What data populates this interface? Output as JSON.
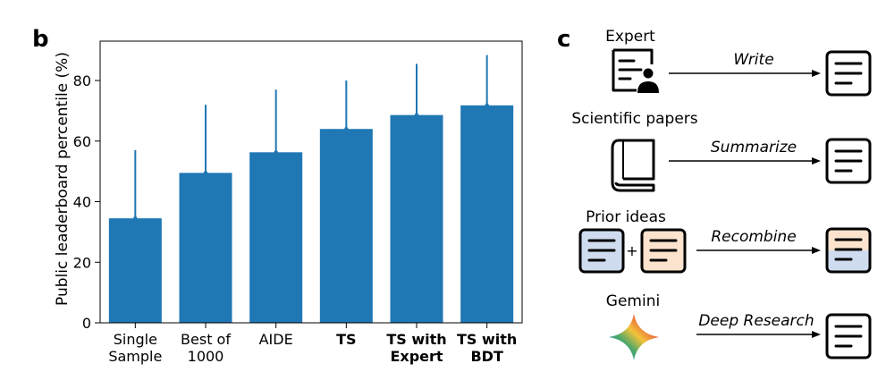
{
  "panel_labels": {
    "left": "b",
    "right": "c"
  },
  "chart_data": {
    "type": "bar",
    "ylabel": "Public leaderboard percentile (%)",
    "xlabel": "",
    "ylim": [
      0,
      93
    ],
    "yticks": [
      0,
      20,
      40,
      60,
      80
    ],
    "bar_color": "#1f77b4",
    "categories": [
      {
        "lines": [
          "Single",
          "Sample"
        ],
        "bold": false
      },
      {
        "lines": [
          "Best of",
          "1000"
        ],
        "bold": false
      },
      {
        "lines": [
          "AIDE"
        ],
        "bold": false
      },
      {
        "lines": [
          "TS"
        ],
        "bold": true
      },
      {
        "lines": [
          "TS with",
          "Expert"
        ],
        "bold": true
      },
      {
        "lines": [
          "TS with",
          "BDT"
        ],
        "bold": true
      }
    ],
    "values": [
      34.5,
      49.5,
      56.3,
      64.0,
      68.6,
      71.8
    ],
    "error_upper": [
      57.0,
      72.0,
      77.0,
      80.0,
      85.5,
      88.4
    ]
  },
  "diagram": {
    "rows": [
      {
        "source": "Expert",
        "source_icon": "expert-document-icon",
        "arrow_label": "Write",
        "target_icon": "idea-document-icon"
      },
      {
        "source": "Scientific papers",
        "source_icon": "book-icon",
        "arrow_label": "Summarize",
        "target_icon": "idea-document-icon"
      },
      {
        "source": "Prior ideas",
        "source_icon": "two-ideas-icon",
        "plus": "+",
        "arrow_label": "Recombine",
        "target_icon": "recombined-document-icon"
      },
      {
        "source": "Gemini",
        "source_icon": "gemini-star-icon",
        "arrow_label": "Deep Research",
        "target_icon": "idea-document-icon"
      }
    ],
    "colors": {
      "blue_doc": "#cfdcef",
      "orange_doc": "#fbe3cd"
    }
  }
}
